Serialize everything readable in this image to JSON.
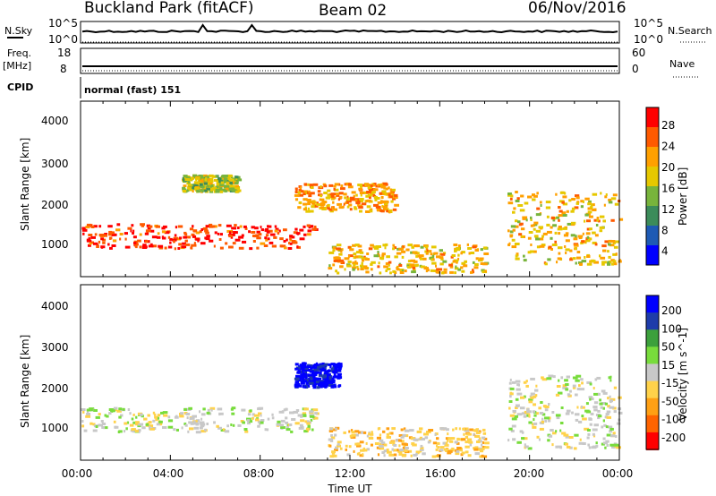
{
  "header": {
    "station": "Buckland Park (fitACF)",
    "beam": "Beam 02",
    "date": "06/Nov/2016"
  },
  "strips": {
    "nsky_label": "N.Sky",
    "nsky_ticks": [
      "10^5",
      "10^0"
    ],
    "nsearch_label": "N.Search",
    "nsearch_ticks": [
      "10^5",
      "10^0"
    ],
    "freq_label": "Freq.",
    "freq_unit": "[MHz]",
    "freq_ticks": [
      "18",
      "8"
    ],
    "nave_label": "Nave",
    "nave_ticks": [
      "60",
      "0"
    ],
    "cpid_label": "CPID",
    "cpid_value": "normal (fast) 151"
  },
  "power_panel": {
    "ylabel": "Slant Range [km]",
    "yticks": [
      "4000",
      "3000",
      "2000",
      "1000"
    ],
    "colorbar_label": "Power [dB]",
    "colorbar_ticks": [
      "28",
      "24",
      "20",
      "16",
      "12",
      "8",
      "4"
    ],
    "colorbar_colors": [
      "#ff0000",
      "#ff5a00",
      "#ffa000",
      "#e6c800",
      "#78b43c",
      "#3c8c5a",
      "#1e5ab4",
      "#0000ff"
    ]
  },
  "velocity_panel": {
    "ylabel": "Slant Range [km]",
    "yticks": [
      "4000",
      "3000",
      "2000",
      "1000"
    ],
    "colorbar_label": "Velocity [m s^-1]",
    "colorbar_ticks": [
      "200",
      "100",
      "50",
      "15",
      "-15",
      "-50",
      "-100",
      "-200"
    ],
    "colorbar_colors": [
      "#0000ff",
      "#1e3caa",
      "#3ca03c",
      "#78dc3c",
      "#c8c8c8",
      "#ffd24a",
      "#ffa014",
      "#ff6400",
      "#ff0000"
    ]
  },
  "x_axis": {
    "ticks": [
      "00:00",
      "04:00",
      "08:00",
      "12:00",
      "16:00",
      "20:00",
      "00:00"
    ],
    "label": "Time UT"
  },
  "chart_data": [
    {
      "type": "heatmap",
      "name": "power",
      "x_range_hours": [
        0,
        24
      ],
      "y_range_km": [
        180,
        4500
      ],
      "color_range_db": [
        0,
        30
      ],
      "features": [
        {
          "t_start": 0.0,
          "t_end": 10.5,
          "range_km": [
            900,
            1500
          ],
          "power_db": 28
        },
        {
          "t_start": 4.5,
          "t_end": 7.0,
          "range_km": [
            2300,
            2700
          ],
          "power_db": 16
        },
        {
          "t_start": 9.5,
          "t_end": 14.0,
          "range_km": [
            1800,
            2500
          ],
          "power_db": 22
        },
        {
          "t_start": 11.0,
          "t_end": 18.0,
          "range_km": [
            300,
            1000
          ],
          "power_db": 20
        },
        {
          "t_start": 19.0,
          "t_end": 24.0,
          "range_km": [
            500,
            2300
          ],
          "power_db": 20
        }
      ]
    },
    {
      "type": "heatmap",
      "name": "velocity",
      "x_range_hours": [
        0,
        24
      ],
      "y_range_km": [
        180,
        4500
      ],
      "color_range_ms": [
        -200,
        200
      ],
      "features": [
        {
          "t_start": 0.0,
          "t_end": 10.5,
          "range_km": [
            900,
            1500
          ],
          "velocity_ms": 0
        },
        {
          "t_start": 9.5,
          "t_end": 11.5,
          "range_km": [
            2000,
            2600
          ],
          "velocity_ms": 200
        },
        {
          "t_start": 11.0,
          "t_end": 18.0,
          "range_km": [
            300,
            1000
          ],
          "velocity_ms": -40
        },
        {
          "t_start": 19.0,
          "t_end": 24.0,
          "range_km": [
            500,
            2300
          ],
          "velocity_ms": 0
        }
      ]
    }
  ]
}
